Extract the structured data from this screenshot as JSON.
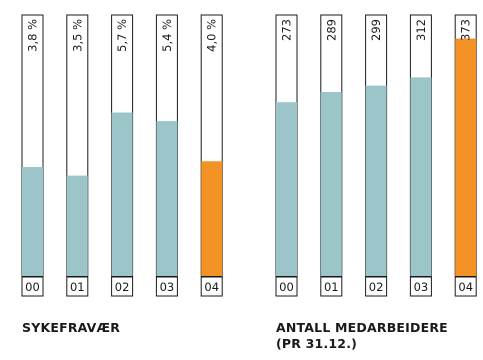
{
  "chart_data": [
    {
      "type": "bar",
      "title": "SYKEFRAVÆR",
      "categories": [
        "00",
        "01",
        "02",
        "03",
        "04"
      ],
      "values": [
        3.8,
        3.5,
        5.7,
        5.4,
        4.0
      ],
      "value_labels": [
        "3,8 %",
        "3,5 %",
        "5,7 %",
        "5,4 %",
        "4,0 %"
      ],
      "ylim": [
        0,
        9.1
      ],
      "highlight_index": 4
    },
    {
      "type": "bar",
      "title": "ANTALL MEDARBEIDERE (PR 31.12.)",
      "categories": [
        "00",
        "01",
        "02",
        "03",
        "04"
      ],
      "values": [
        273,
        289,
        299,
        312,
        373
      ],
      "value_labels": [
        "273",
        "289",
        "299",
        "312",
        "373"
      ],
      "ylim": [
        0,
        410
      ],
      "highlight_index": 4
    }
  ],
  "colors": {
    "bar_fill": "#9cc5c9",
    "highlight_fill": "#f39325",
    "outline": "#1a1a1a",
    "background": "#ffffff"
  }
}
